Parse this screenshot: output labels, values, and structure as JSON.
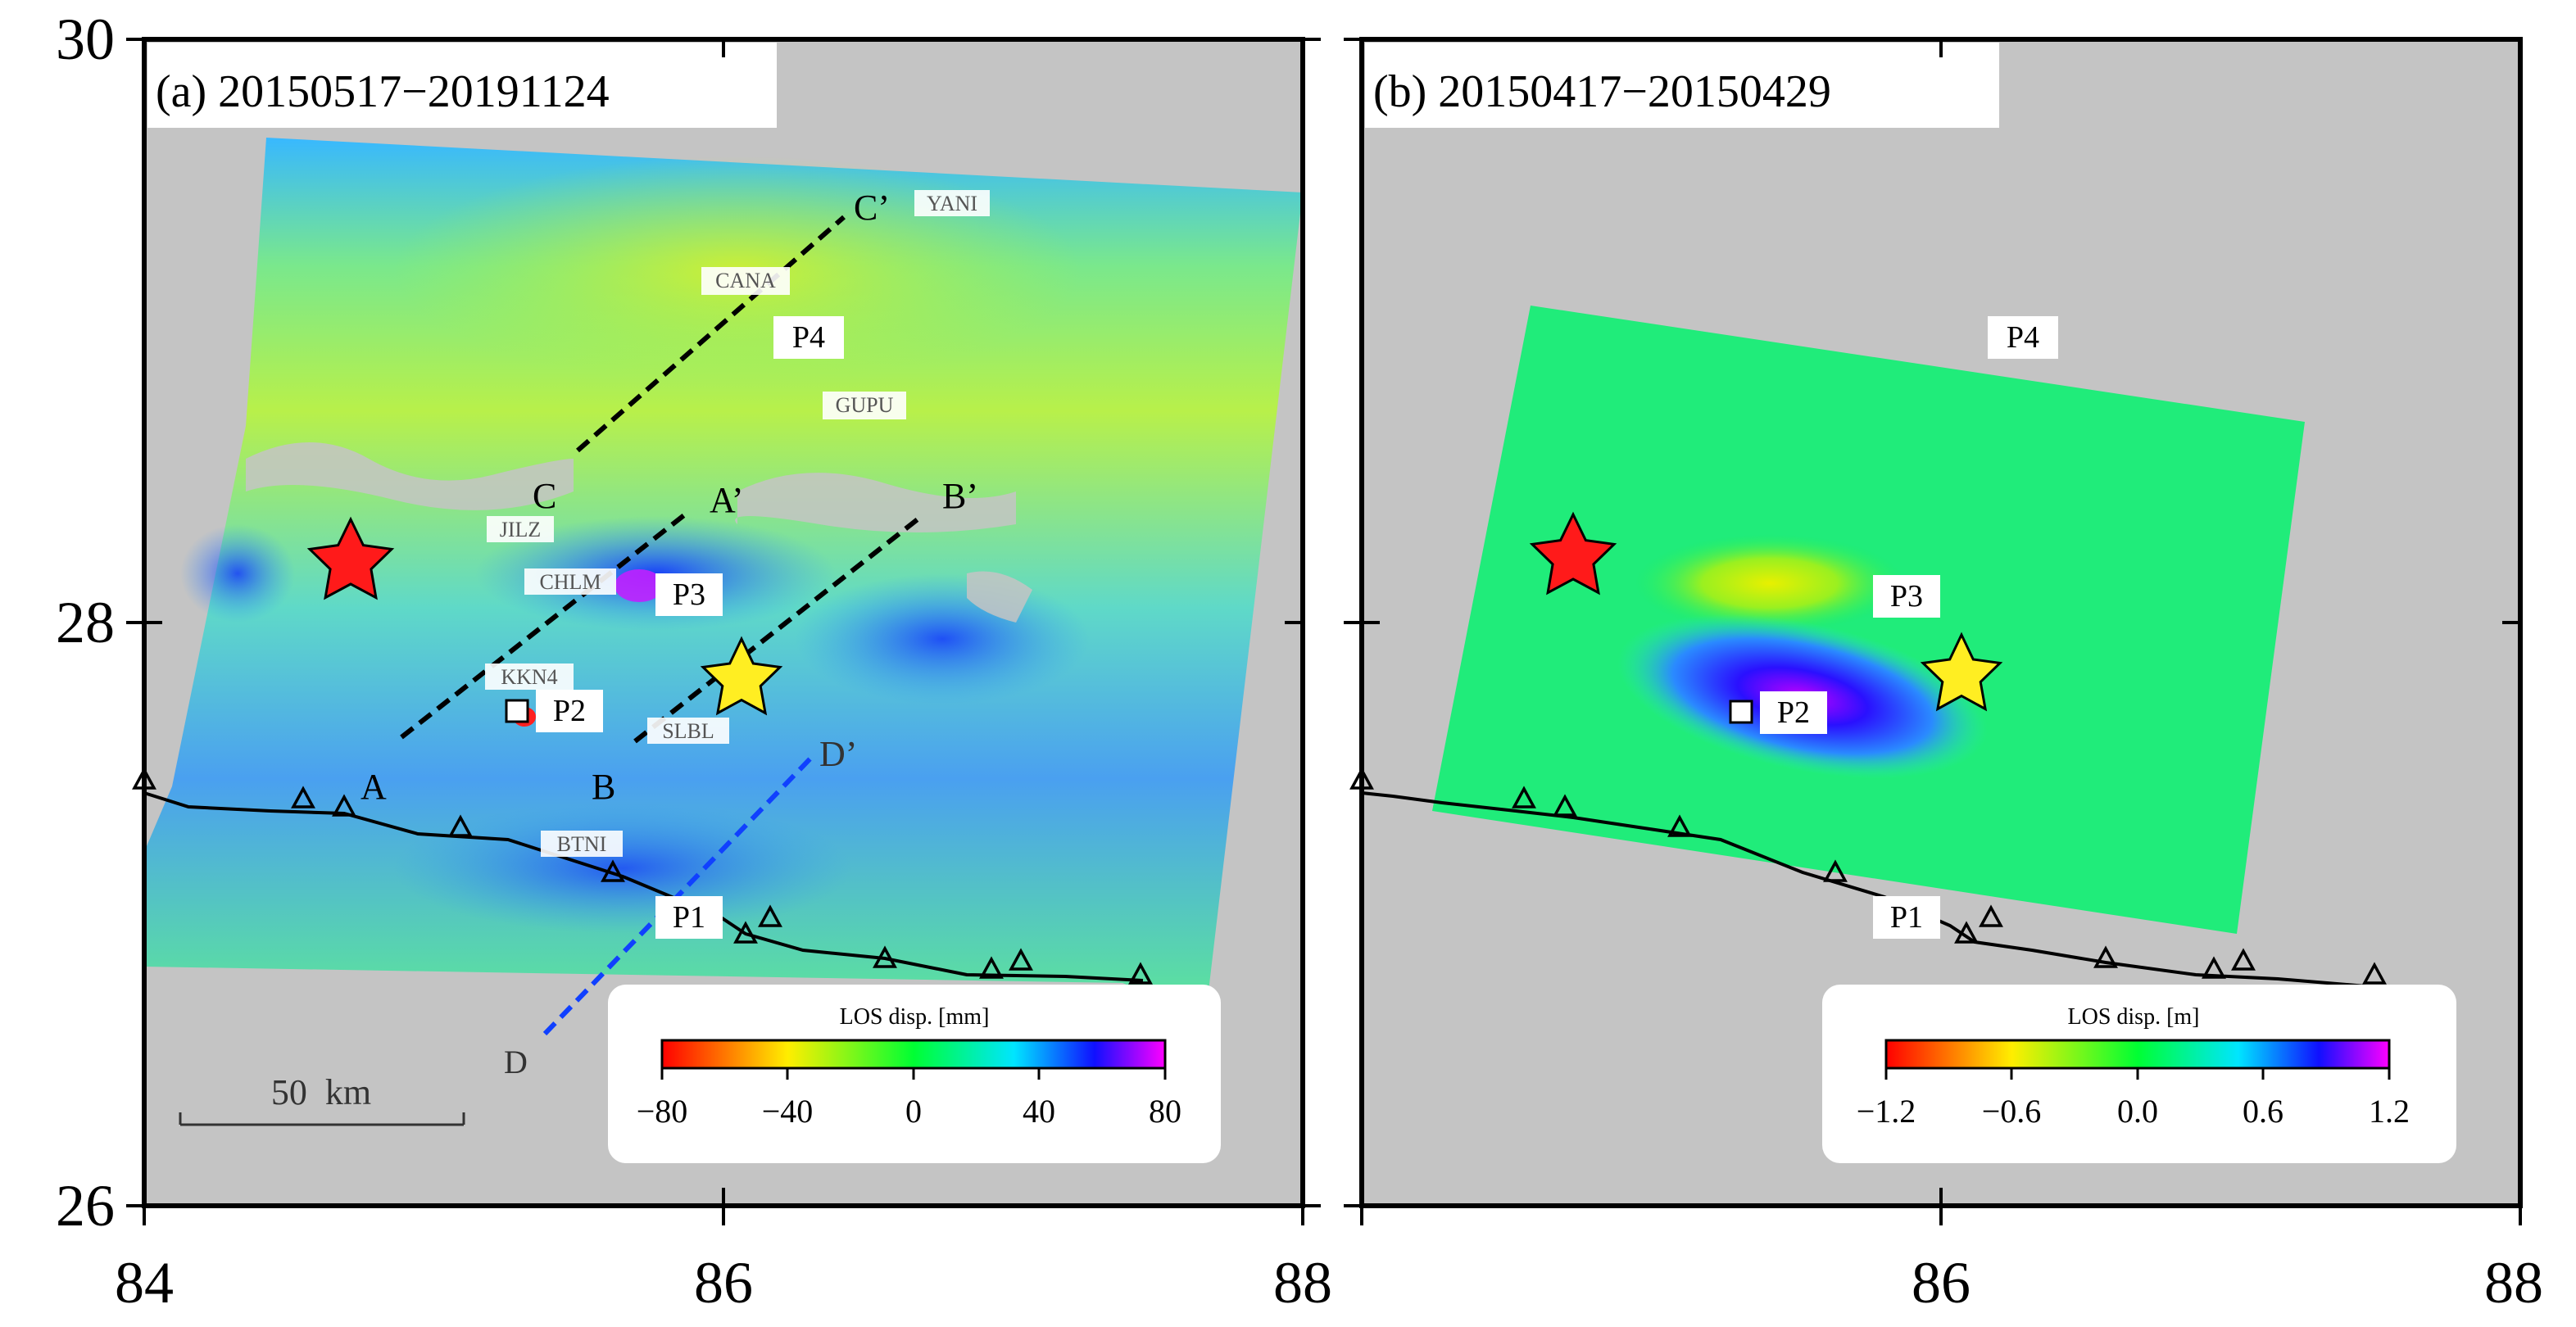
{
  "axes": {
    "y_ticks": [
      "30",
      "28",
      "26"
    ],
    "x_ticks_a": [
      "84",
      "86",
      "88"
    ],
    "x_ticks_b": [
      "86",
      "88"
    ]
  },
  "panel_a": {
    "title": "(a) 20150517−20191124",
    "stations": [
      "YANI",
      "CANA",
      "GUPU",
      "JILZ",
      "CHLM",
      "KKN4",
      "SLBL",
      "BTNI"
    ],
    "points": [
      "P4",
      "P3",
      "P2",
      "P1"
    ],
    "profile_labels": [
      "C’",
      "C",
      "A’",
      "A",
      "B’",
      "B",
      "D’",
      "D"
    ],
    "scale_bar": "50  km",
    "colorbar": {
      "title": "LOS disp. [mm]",
      "ticks": [
        "−80",
        "−40",
        "0",
        "40",
        "80"
      ]
    }
  },
  "panel_b": {
    "title": "(b) 20150417−20150429",
    "points": [
      "P4",
      "P3",
      "P2",
      "P1"
    ],
    "colorbar": {
      "title": "LOS disp. [m]",
      "ticks": [
        "−1.2",
        "−0.6",
        "0.0",
        "0.6",
        "1.2"
      ]
    }
  },
  "colors": {
    "ocean_gray": "#c4c4c4",
    "epicenter_star": "#ff1a1a",
    "aftershock_star": "#ffee22",
    "palette": [
      "#ff0000",
      "#ffee00",
      "#00ff00",
      "#00ffff",
      "#0000ff",
      "#ff00ff"
    ]
  },
  "icons": [
    "star-icon",
    "square-marker-icon",
    "triangle-fault-icon"
  ]
}
